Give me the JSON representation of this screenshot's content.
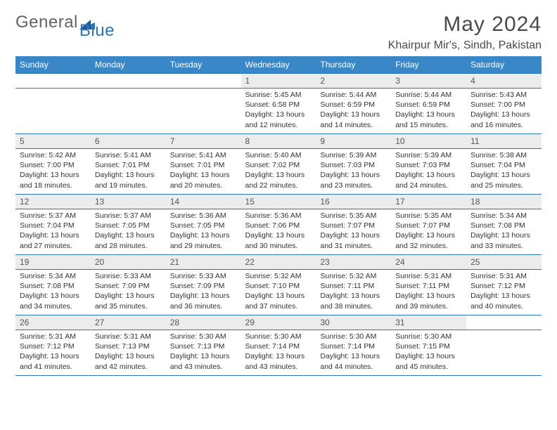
{
  "brand": {
    "general": "General",
    "blue": "Blue"
  },
  "title": "May 2024",
  "location": "Khairpur Mir's, Sindh, Pakistan",
  "colors": {
    "header_bg": "#3a87c8",
    "accent": "#2f74b5",
    "daynum_bg": "#ececec",
    "text": "#333333",
    "page_bg": "#ffffff"
  },
  "weekdays": [
    "Sunday",
    "Monday",
    "Tuesday",
    "Wednesday",
    "Thursday",
    "Friday",
    "Saturday"
  ],
  "weeks": [
    [
      {
        "n": "",
        "sr": "",
        "ss": "",
        "dl1": "",
        "dl2": ""
      },
      {
        "n": "",
        "sr": "",
        "ss": "",
        "dl1": "",
        "dl2": ""
      },
      {
        "n": "",
        "sr": "",
        "ss": "",
        "dl1": "",
        "dl2": ""
      },
      {
        "n": "1",
        "sr": "Sunrise: 5:45 AM",
        "ss": "Sunset: 6:58 PM",
        "dl1": "Daylight: 13 hours",
        "dl2": "and 12 minutes."
      },
      {
        "n": "2",
        "sr": "Sunrise: 5:44 AM",
        "ss": "Sunset: 6:59 PM",
        "dl1": "Daylight: 13 hours",
        "dl2": "and 14 minutes."
      },
      {
        "n": "3",
        "sr": "Sunrise: 5:44 AM",
        "ss": "Sunset: 6:59 PM",
        "dl1": "Daylight: 13 hours",
        "dl2": "and 15 minutes."
      },
      {
        "n": "4",
        "sr": "Sunrise: 5:43 AM",
        "ss": "Sunset: 7:00 PM",
        "dl1": "Daylight: 13 hours",
        "dl2": "and 16 minutes."
      }
    ],
    [
      {
        "n": "5",
        "sr": "Sunrise: 5:42 AM",
        "ss": "Sunset: 7:00 PM",
        "dl1": "Daylight: 13 hours",
        "dl2": "and 18 minutes."
      },
      {
        "n": "6",
        "sr": "Sunrise: 5:41 AM",
        "ss": "Sunset: 7:01 PM",
        "dl1": "Daylight: 13 hours",
        "dl2": "and 19 minutes."
      },
      {
        "n": "7",
        "sr": "Sunrise: 5:41 AM",
        "ss": "Sunset: 7:01 PM",
        "dl1": "Daylight: 13 hours",
        "dl2": "and 20 minutes."
      },
      {
        "n": "8",
        "sr": "Sunrise: 5:40 AM",
        "ss": "Sunset: 7:02 PM",
        "dl1": "Daylight: 13 hours",
        "dl2": "and 22 minutes."
      },
      {
        "n": "9",
        "sr": "Sunrise: 5:39 AM",
        "ss": "Sunset: 7:03 PM",
        "dl1": "Daylight: 13 hours",
        "dl2": "and 23 minutes."
      },
      {
        "n": "10",
        "sr": "Sunrise: 5:39 AM",
        "ss": "Sunset: 7:03 PM",
        "dl1": "Daylight: 13 hours",
        "dl2": "and 24 minutes."
      },
      {
        "n": "11",
        "sr": "Sunrise: 5:38 AM",
        "ss": "Sunset: 7:04 PM",
        "dl1": "Daylight: 13 hours",
        "dl2": "and 25 minutes."
      }
    ],
    [
      {
        "n": "12",
        "sr": "Sunrise: 5:37 AM",
        "ss": "Sunset: 7:04 PM",
        "dl1": "Daylight: 13 hours",
        "dl2": "and 27 minutes."
      },
      {
        "n": "13",
        "sr": "Sunrise: 5:37 AM",
        "ss": "Sunset: 7:05 PM",
        "dl1": "Daylight: 13 hours",
        "dl2": "and 28 minutes."
      },
      {
        "n": "14",
        "sr": "Sunrise: 5:36 AM",
        "ss": "Sunset: 7:05 PM",
        "dl1": "Daylight: 13 hours",
        "dl2": "and 29 minutes."
      },
      {
        "n": "15",
        "sr": "Sunrise: 5:36 AM",
        "ss": "Sunset: 7:06 PM",
        "dl1": "Daylight: 13 hours",
        "dl2": "and 30 minutes."
      },
      {
        "n": "16",
        "sr": "Sunrise: 5:35 AM",
        "ss": "Sunset: 7:07 PM",
        "dl1": "Daylight: 13 hours",
        "dl2": "and 31 minutes."
      },
      {
        "n": "17",
        "sr": "Sunrise: 5:35 AM",
        "ss": "Sunset: 7:07 PM",
        "dl1": "Daylight: 13 hours",
        "dl2": "and 32 minutes."
      },
      {
        "n": "18",
        "sr": "Sunrise: 5:34 AM",
        "ss": "Sunset: 7:08 PM",
        "dl1": "Daylight: 13 hours",
        "dl2": "and 33 minutes."
      }
    ],
    [
      {
        "n": "19",
        "sr": "Sunrise: 5:34 AM",
        "ss": "Sunset: 7:08 PM",
        "dl1": "Daylight: 13 hours",
        "dl2": "and 34 minutes."
      },
      {
        "n": "20",
        "sr": "Sunrise: 5:33 AM",
        "ss": "Sunset: 7:09 PM",
        "dl1": "Daylight: 13 hours",
        "dl2": "and 35 minutes."
      },
      {
        "n": "21",
        "sr": "Sunrise: 5:33 AM",
        "ss": "Sunset: 7:09 PM",
        "dl1": "Daylight: 13 hours",
        "dl2": "and 36 minutes."
      },
      {
        "n": "22",
        "sr": "Sunrise: 5:32 AM",
        "ss": "Sunset: 7:10 PM",
        "dl1": "Daylight: 13 hours",
        "dl2": "and 37 minutes."
      },
      {
        "n": "23",
        "sr": "Sunrise: 5:32 AM",
        "ss": "Sunset: 7:11 PM",
        "dl1": "Daylight: 13 hours",
        "dl2": "and 38 minutes."
      },
      {
        "n": "24",
        "sr": "Sunrise: 5:31 AM",
        "ss": "Sunset: 7:11 PM",
        "dl1": "Daylight: 13 hours",
        "dl2": "and 39 minutes."
      },
      {
        "n": "25",
        "sr": "Sunrise: 5:31 AM",
        "ss": "Sunset: 7:12 PM",
        "dl1": "Daylight: 13 hours",
        "dl2": "and 40 minutes."
      }
    ],
    [
      {
        "n": "26",
        "sr": "Sunrise: 5:31 AM",
        "ss": "Sunset: 7:12 PM",
        "dl1": "Daylight: 13 hours",
        "dl2": "and 41 minutes."
      },
      {
        "n": "27",
        "sr": "Sunrise: 5:31 AM",
        "ss": "Sunset: 7:13 PM",
        "dl1": "Daylight: 13 hours",
        "dl2": "and 42 minutes."
      },
      {
        "n": "28",
        "sr": "Sunrise: 5:30 AM",
        "ss": "Sunset: 7:13 PM",
        "dl1": "Daylight: 13 hours",
        "dl2": "and 43 minutes."
      },
      {
        "n": "29",
        "sr": "Sunrise: 5:30 AM",
        "ss": "Sunset: 7:14 PM",
        "dl1": "Daylight: 13 hours",
        "dl2": "and 43 minutes."
      },
      {
        "n": "30",
        "sr": "Sunrise: 5:30 AM",
        "ss": "Sunset: 7:14 PM",
        "dl1": "Daylight: 13 hours",
        "dl2": "and 44 minutes."
      },
      {
        "n": "31",
        "sr": "Sunrise: 5:30 AM",
        "ss": "Sunset: 7:15 PM",
        "dl1": "Daylight: 13 hours",
        "dl2": "and 45 minutes."
      },
      {
        "n": "",
        "sr": "",
        "ss": "",
        "dl1": "",
        "dl2": ""
      }
    ]
  ]
}
